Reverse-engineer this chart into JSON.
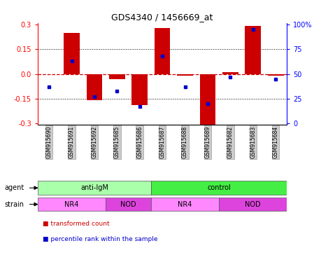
{
  "title": "GDS4340 / 1456669_at",
  "samples": [
    "GSM915690",
    "GSM915691",
    "GSM915692",
    "GSM915685",
    "GSM915686",
    "GSM915687",
    "GSM915688",
    "GSM915689",
    "GSM915682",
    "GSM915683",
    "GSM915684"
  ],
  "transformed_count": [
    0.0,
    0.25,
    -0.16,
    -0.03,
    -0.19,
    0.28,
    -0.01,
    -0.31,
    0.01,
    0.29,
    -0.01
  ],
  "percentile_rank": [
    37,
    63,
    27,
    33,
    17,
    68,
    37,
    20,
    47,
    95,
    45
  ],
  "ylim": [
    -0.31,
    0.31
  ],
  "yticks": [
    -0.3,
    -0.15,
    0.0,
    0.15,
    0.3
  ],
  "yticks_right": [
    0,
    25,
    50,
    75,
    100
  ],
  "agent_groups": [
    {
      "label": "anti-IgM",
      "start": 0,
      "end": 5,
      "color": "#aaffaa"
    },
    {
      "label": "control",
      "start": 5,
      "end": 11,
      "color": "#44ee44"
    }
  ],
  "strain_groups": [
    {
      "label": "NR4",
      "start": 0,
      "end": 3,
      "color": "#ff88ff"
    },
    {
      "label": "NOD",
      "start": 3,
      "end": 5,
      "color": "#dd44dd"
    },
    {
      "label": "NR4",
      "start": 5,
      "end": 8,
      "color": "#ff88ff"
    },
    {
      "label": "NOD",
      "start": 8,
      "end": 11,
      "color": "#dd44dd"
    }
  ],
  "bar_color": "#cc0000",
  "dot_color": "#0000cc",
  "hline_color": "#cc0000",
  "bg_color": "#ffffff",
  "legend_items": [
    {
      "label": "transformed count",
      "color": "#cc0000"
    },
    {
      "label": "percentile rank within the sample",
      "color": "#0000cc"
    }
  ],
  "agent_label": "agent",
  "strain_label": "strain"
}
